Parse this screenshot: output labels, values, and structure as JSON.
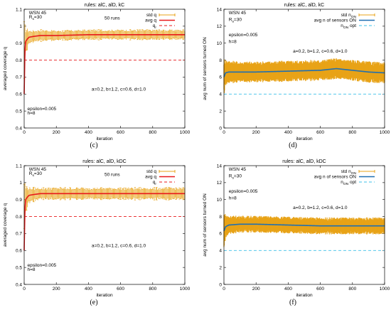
{
  "colors": {
    "std": "#e8a317",
    "avg_q": "#e8191b",
    "avg_n": "#1f6fb2",
    "ref_q": "#e8191b",
    "ref_n": "#3cc0e8",
    "axis": "#000000"
  },
  "chart_data": [
    {
      "id": "c",
      "type": "line",
      "caption": "(c)",
      "title": "rules: alC, alD, kC",
      "xlabel": "iteration",
      "ylabel": "averaged coverage q",
      "xlim": [
        0,
        1000
      ],
      "ylim": [
        0.4,
        1.1
      ],
      "xticks": [
        0,
        200,
        400,
        600,
        800,
        1000
      ],
      "yticks": [
        0.4,
        0.5,
        0.6,
        0.7,
        0.8,
        0.9,
        1,
        1.1
      ],
      "annotations": [
        {
          "text": "WSN 45",
          "at": [
            30,
            1.07
          ]
        },
        {
          "text": "R_s=30",
          "at": [
            30,
            1.045
          ]
        },
        {
          "text": "50 runs",
          "at": [
            500,
            1.04
          ]
        },
        {
          "text": "a=0.2, b=1.2, c=0.6, d=1.0",
          "at": [
            420,
            0.62
          ]
        },
        {
          "text": "epsilon=0.005",
          "at": [
            20,
            0.505
          ]
        },
        {
          "text": "h=8",
          "at": [
            20,
            0.48
          ]
        }
      ],
      "legend": [
        "std q",
        "avg q",
        "q_r"
      ],
      "series": [
        {
          "name": "std q",
          "role": "band",
          "x": [
            0,
            10,
            30,
            60,
            100,
            200,
            400,
            600,
            800,
            1000
          ],
          "y": [
            0.86,
            0.91,
            0.935,
            0.94,
            0.945,
            0.945,
            0.95,
            0.95,
            0.95,
            0.95
          ],
          "err": [
            0.14,
            0.07,
            0.035,
            0.03,
            0.03,
            0.025,
            0.025,
            0.025,
            0.025,
            0.025
          ]
        },
        {
          "name": "avg q",
          "role": "line",
          "x": [
            0,
            5,
            10,
            20,
            30,
            60,
            100,
            200,
            400,
            600,
            800,
            1000
          ],
          "y": [
            0.6,
            0.86,
            0.91,
            0.925,
            0.935,
            0.94,
            0.945,
            0.945,
            0.95,
            0.95,
            0.95,
            0.95
          ]
        },
        {
          "name": "q_r",
          "role": "ref",
          "x": [
            0,
            1000
          ],
          "y": [
            0.8,
            0.8
          ]
        }
      ]
    },
    {
      "id": "d",
      "type": "line",
      "caption": "(d)",
      "title": "rules: alC, alD, kC",
      "xlabel": "iteration",
      "ylabel": "avg num of sensors turned ON",
      "xlim": [
        0,
        1000
      ],
      "ylim": [
        0,
        14
      ],
      "xticks": [
        0,
        200,
        400,
        600,
        800,
        1000
      ],
      "yticks": [
        0,
        2,
        4,
        6,
        8,
        10,
        12,
        14
      ],
      "annotations": [
        {
          "text": "WSN 45",
          "at": [
            30,
            13.4
          ]
        },
        {
          "text": "R_s=30",
          "at": [
            30,
            12.6
          ]
        },
        {
          "text": "epsilon=0.005",
          "at": [
            30,
            10.8
          ]
        },
        {
          "text": "h=8",
          "at": [
            30,
            10.0
          ]
        },
        {
          "text": "a=0.2, b=1.2, c=0.6, d=1.0",
          "at": [
            430,
            8.9
          ]
        }
      ],
      "legend": [
        "std n_ON",
        "avg n of sensors ON",
        "n_ON opt"
      ],
      "series": [
        {
          "name": "std n_ON",
          "role": "band",
          "x": [
            0,
            10,
            30,
            100,
            200,
            400,
            600,
            700,
            800,
            900,
            1000
          ],
          "y": [
            6.0,
            6.5,
            6.6,
            6.6,
            6.6,
            6.7,
            6.8,
            7.0,
            6.8,
            6.6,
            6.5
          ],
          "err": [
            1.8,
            1.3,
            1.1,
            1.0,
            1.0,
            1.0,
            1.0,
            1.0,
            1.0,
            1.0,
            1.0
          ]
        },
        {
          "name": "avg n of sensors ON",
          "role": "line",
          "x": [
            0,
            10,
            30,
            100,
            200,
            400,
            600,
            700,
            800,
            900,
            1000
          ],
          "y": [
            6.0,
            6.5,
            6.6,
            6.6,
            6.6,
            6.7,
            6.8,
            7.0,
            6.8,
            6.6,
            6.5
          ]
        },
        {
          "name": "n_ON opt",
          "role": "ref",
          "x": [
            0,
            1000
          ],
          "y": [
            4.0,
            4.0
          ]
        }
      ]
    },
    {
      "id": "e",
      "type": "line",
      "caption": "(e)",
      "title": "rules: alC, alD, kDC",
      "xlabel": "iteration",
      "ylabel": "averaged coverage q",
      "xlim": [
        0,
        1000
      ],
      "ylim": [
        0.4,
        1.1
      ],
      "xticks": [
        0,
        200,
        400,
        600,
        800,
        1000
      ],
      "yticks": [
        0.4,
        0.5,
        0.6,
        0.7,
        0.8,
        0.9,
        1,
        1.1
      ],
      "annotations": [
        {
          "text": "WSN 45",
          "at": [
            30,
            1.07
          ]
        },
        {
          "text": "R_s=30",
          "at": [
            30,
            1.045
          ]
        },
        {
          "text": "50 runs",
          "at": [
            500,
            1.04
          ]
        },
        {
          "text": "a=0.2, b=1.2, c=0.6, d=1.0",
          "at": [
            420,
            0.62
          ]
        },
        {
          "text": "epsilon=0.005",
          "at": [
            20,
            0.505
          ]
        },
        {
          "text": "h=8",
          "at": [
            20,
            0.48
          ]
        }
      ],
      "legend": [
        "std q",
        "avg q",
        "q_r"
      ],
      "series": [
        {
          "name": "std q",
          "role": "band",
          "x": [
            0,
            10,
            30,
            60,
            100,
            200,
            400,
            600,
            800,
            1000
          ],
          "y": [
            0.86,
            0.9,
            0.925,
            0.93,
            0.935,
            0.935,
            0.935,
            0.935,
            0.935,
            0.935
          ],
          "err": [
            0.14,
            0.07,
            0.04,
            0.035,
            0.03,
            0.03,
            0.03,
            0.03,
            0.03,
            0.03
          ]
        },
        {
          "name": "avg q",
          "role": "line",
          "x": [
            0,
            5,
            10,
            20,
            30,
            60,
            100,
            200,
            400,
            600,
            800,
            1000
          ],
          "y": [
            0.6,
            0.85,
            0.9,
            0.915,
            0.925,
            0.93,
            0.935,
            0.935,
            0.935,
            0.935,
            0.935,
            0.935
          ]
        },
        {
          "name": "q_r",
          "role": "ref",
          "x": [
            0,
            1000
          ],
          "y": [
            0.8,
            0.8
          ]
        }
      ]
    },
    {
      "id": "f",
      "type": "line",
      "caption": "(f)",
      "title": "rules: alC, alD, kDC",
      "xlabel": "iteration",
      "ylabel": "avg num of sensors turned ON",
      "xlim": [
        0,
        1000
      ],
      "ylim": [
        0,
        14
      ],
      "xticks": [
        0,
        200,
        400,
        600,
        800,
        1000
      ],
      "yticks": [
        0,
        2,
        4,
        6,
        8,
        10,
        12,
        14
      ],
      "annotations": [
        {
          "text": "WSN 45",
          "at": [
            30,
            13.4
          ]
        },
        {
          "text": "R_s=30",
          "at": [
            30,
            12.6
          ]
        },
        {
          "text": "epsilon=0.005",
          "at": [
            30,
            10.8
          ]
        },
        {
          "text": "h=8",
          "at": [
            30,
            10.0
          ]
        },
        {
          "text": "a=0.2, b=1.2, c=0.6, d=1.0",
          "at": [
            430,
            8.9
          ]
        }
      ],
      "legend": [
        "std n_ON",
        "avg n of sensors ON",
        "n_ON opt"
      ],
      "series": [
        {
          "name": "std n_ON",
          "role": "band",
          "x": [
            0,
            10,
            30,
            100,
            200,
            400,
            600,
            800,
            1000
          ],
          "y": [
            6.3,
            6.8,
            7.0,
            7.1,
            7.1,
            7.0,
            6.9,
            6.9,
            6.9
          ],
          "err": [
            1.8,
            1.2,
            0.9,
            0.8,
            0.8,
            0.8,
            0.8,
            0.8,
            0.8
          ]
        },
        {
          "name": "avg n of sensors ON",
          "role": "line",
          "x": [
            0,
            10,
            30,
            100,
            200,
            400,
            600,
            800,
            1000
          ],
          "y": [
            6.3,
            6.8,
            7.0,
            7.1,
            7.1,
            7.0,
            6.9,
            6.9,
            6.9
          ]
        },
        {
          "name": "n_ON opt",
          "role": "ref",
          "x": [
            0,
            1000
          ],
          "y": [
            4.0,
            4.0
          ]
        }
      ]
    }
  ]
}
